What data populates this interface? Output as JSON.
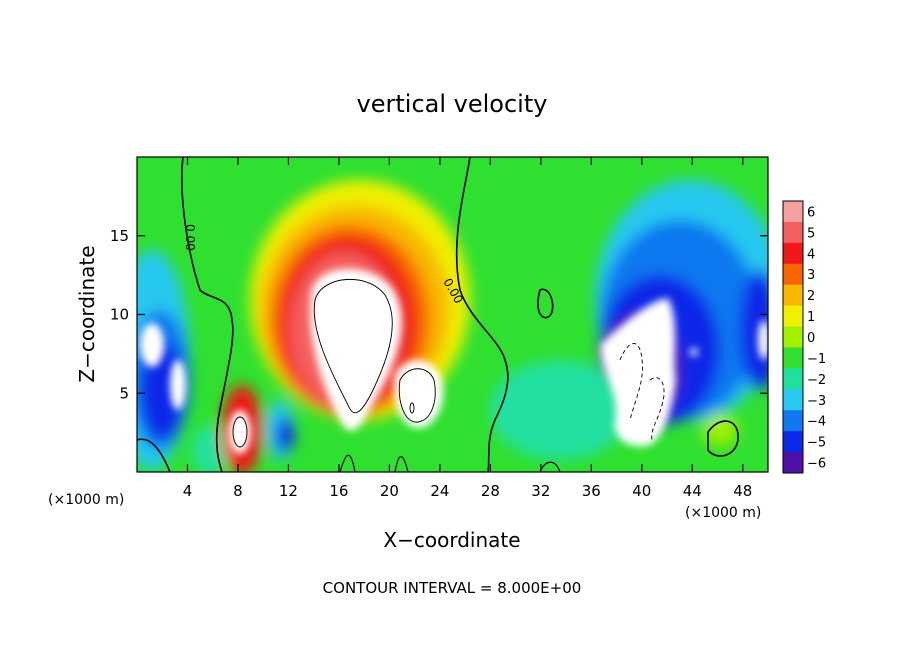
{
  "chart_data": {
    "type": "heatmap",
    "title": "vertical velocity",
    "xlabel": "X−coordinate",
    "ylabel": "Z−coordinate",
    "x_unit_left": "(×1000 m)",
    "x_unit_right": "(×1000 m)",
    "footer": "CONTOUR INTERVAL = 8.000E+00",
    "xlim": [
      0,
      50
    ],
    "ylim": [
      0,
      20
    ],
    "x_ticks": [
      4,
      8,
      12,
      16,
      20,
      24,
      28,
      32,
      36,
      40,
      44,
      48
    ],
    "x_tick_labels": [
      "4",
      "8",
      "12",
      "16",
      "20",
      "24",
      "28",
      "32",
      "36",
      "40",
      "44",
      "48"
    ],
    "y_ticks": [
      5,
      10,
      15
    ],
    "y_tick_labels": [
      "5",
      "10",
      "15"
    ],
    "colorbar": {
      "levels": [
        6,
        5,
        4,
        3,
        2,
        1,
        0,
        -1,
        -2,
        -3,
        -4,
        -5,
        -6
      ],
      "labels": [
        "6",
        "5",
        "4",
        "3",
        "2",
        "1",
        "0",
        "−1",
        "−2",
        "−3",
        "−4",
        "−5",
        "−6"
      ],
      "colors": [
        "#f5a0a0",
        "#f46060",
        "#f01818",
        "#f86400",
        "#f8b800",
        "#f0f000",
        "#a0f000",
        "#30e030",
        "#20e0a0",
        "#28c8f0",
        "#1078f0",
        "#0c28e8",
        "#5010a8"
      ]
    },
    "contour_labels": [
      "0.00",
      "0.00"
    ],
    "notes_colors": {
      "saturated_high": "#ffffff",
      "saturated_low": "#ffffff"
    }
  }
}
